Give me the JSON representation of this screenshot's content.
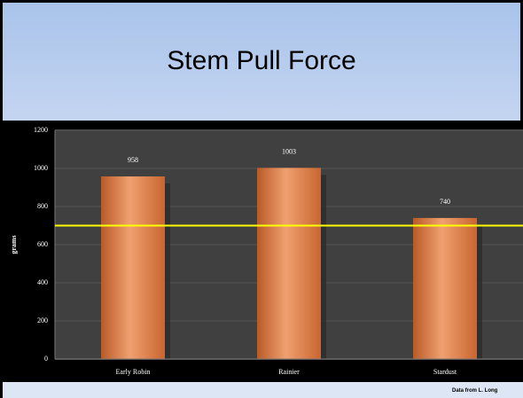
{
  "chart_data": {
    "type": "bar",
    "title": "Stem Pull Force",
    "ylabel": "grams",
    "categories": [
      "Early Robin",
      "Rainier",
      "Stardust"
    ],
    "values": [
      958,
      1003,
      740
    ],
    "color": "#f0a070",
    "ylim": [
      0,
      1200
    ],
    "yticks": [
      0,
      200,
      400,
      600,
      800,
      1000,
      1200
    ],
    "grid": true,
    "reference_line": 700,
    "reference_color": "#ffff00",
    "source": "Data from L. Long"
  }
}
